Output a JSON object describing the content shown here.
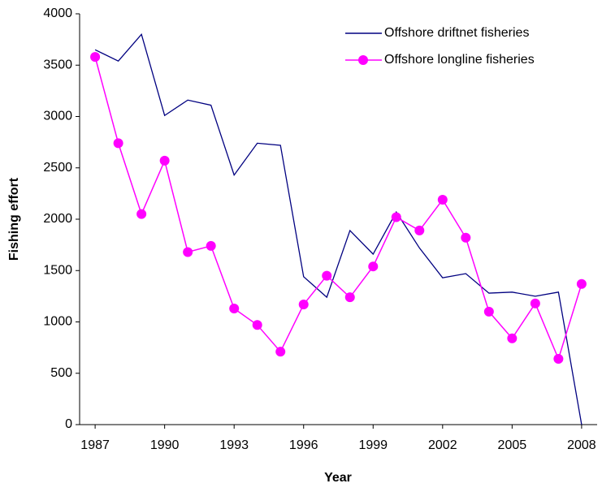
{
  "chart_data": {
    "type": "line",
    "x": [
      1987,
      1988,
      1989,
      1990,
      1991,
      1992,
      1993,
      1994,
      1995,
      1996,
      1997,
      1998,
      1999,
      2000,
      2001,
      2002,
      2003,
      2004,
      2005,
      2006,
      2007,
      2008
    ],
    "series": [
      {
        "name": "Offshore driftnet fisheries",
        "color": "#000080",
        "marker": false,
        "values": [
          3650,
          3540,
          3800,
          3010,
          3160,
          3110,
          2430,
          2740,
          2720,
          1440,
          1240,
          1890,
          1660,
          2070,
          1720,
          1430,
          1470,
          1280,
          1290,
          1250,
          1290,
          0
        ]
      },
      {
        "name": "Offshore longline fisheries",
        "color": "#ff00ff",
        "marker": true,
        "values": [
          3580,
          2740,
          2050,
          2570,
          1680,
          1740,
          1130,
          970,
          710,
          1170,
          1450,
          1240,
          1540,
          2020,
          1890,
          2190,
          1820,
          1100,
          840,
          1180,
          640,
          1370
        ]
      }
    ],
    "xlabel": "Year",
    "ylabel": "Fishing effort",
    "xlim": [
      1986.33,
      2008.67
    ],
    "xticks": [
      1987,
      1990,
      1993,
      1996,
      1999,
      2002,
      2005,
      2008
    ],
    "ylim": [
      0,
      4000
    ],
    "yticks": [
      0,
      500,
      1000,
      1500,
      2000,
      2500,
      3000,
      3500,
      4000
    ],
    "legend": "upper right"
  }
}
